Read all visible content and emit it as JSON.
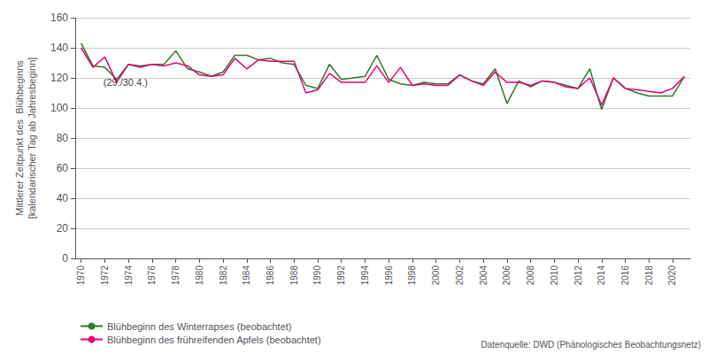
{
  "chart_data": {
    "type": "line",
    "ylabel": "Mittlerer Zeitpunkt des  Blühbeginns\n[kalendarischer Tag ab Jahresbeginn]",
    "x": [
      1970,
      1971,
      1972,
      1973,
      1974,
      1975,
      1976,
      1977,
      1978,
      1979,
      1980,
      1981,
      1982,
      1983,
      1984,
      1985,
      1986,
      1987,
      1988,
      1989,
      1990,
      1991,
      1992,
      1993,
      1994,
      1995,
      1996,
      1997,
      1998,
      1999,
      2000,
      2001,
      2002,
      2003,
      2004,
      2005,
      2006,
      2007,
      2008,
      2009,
      2010,
      2011,
      2012,
      2013,
      2014,
      2015,
      2016,
      2017,
      2018,
      2019,
      2020,
      2021
    ],
    "series": [
      {
        "name": "Blühbeginn des Winterrapses (beobachtet)",
        "color": "#2d7a2d",
        "values": [
          143,
          128,
          127,
          119,
          129,
          128,
          129,
          129,
          138,
          126,
          124,
          121,
          124,
          135,
          135,
          132,
          133,
          130,
          129,
          115,
          113,
          129,
          119,
          120,
          121,
          135,
          119,
          116,
          115,
          117,
          116,
          116,
          122,
          118,
          116,
          126,
          103,
          118,
          114,
          118,
          117,
          115,
          113,
          126,
          99,
          120,
          113,
          110,
          108,
          108,
          108,
          121
        ]
      },
      {
        "name": "Blühbeginn des frühreifenden Apfels (beobachtet)",
        "color": "#e8007a",
        "values": [
          140,
          127,
          134,
          117,
          129,
          127,
          129,
          128,
          130,
          128,
          122,
          121,
          122,
          133,
          126,
          132,
          131,
          131,
          131,
          110,
          112,
          123,
          117,
          117,
          117,
          128,
          117,
          127,
          115,
          116,
          115,
          115,
          122,
          118,
          115,
          124,
          117,
          117,
          115,
          118,
          117,
          114,
          113,
          120,
          102,
          120,
          113,
          112,
          111,
          110,
          113,
          121
        ]
      }
    ],
    "xlim": [
      1969.5,
      2021.5
    ],
    "xticks": [
      1970,
      1972,
      1974,
      1976,
      1978,
      1980,
      1982,
      1984,
      1986,
      1988,
      1990,
      1992,
      1994,
      1996,
      1998,
      2000,
      2002,
      2004,
      2006,
      2008,
      2010,
      2012,
      2014,
      2016,
      2018,
      2020
    ],
    "ylim": [
      0,
      160
    ],
    "yticks": [
      0,
      20,
      40,
      60,
      80,
      100,
      120,
      140,
      160
    ],
    "grid": true,
    "annotations": [
      {
        "text": "(29./30.4.)",
        "x": 1971.5,
        "y": 113
      }
    ],
    "source": "Datenquelle: DWD (Phänologisches Beobachtungsnetz)"
  }
}
